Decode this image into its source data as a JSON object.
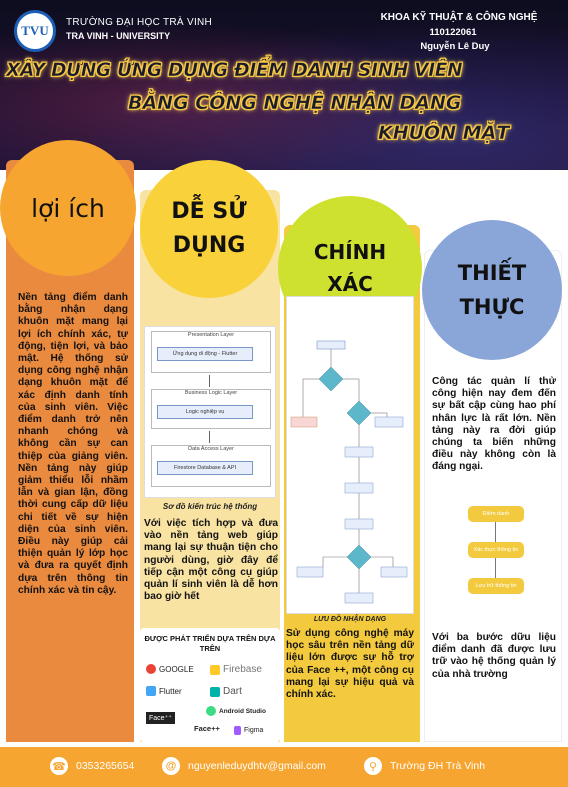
{
  "header": {
    "logo_text": "TVU",
    "university": "TRƯỜNG ĐẠI HỌC TRÀ VINH",
    "university_en": "TRA VINH - UNIVERSITY",
    "faculty": "KHOA KỸ THUẬT & CÔNG NGHỆ",
    "student_id": "110122061",
    "student_name": "Nguyễn Lê Duy",
    "title_line1": "XÂY DỰNG ỨNG DỤNG ĐIỂM DANH SINH VIÊN",
    "title_line2": "BẰNG CÔNG NGHỆ NHẬN DẠNG",
    "title_line3": "KHUÔN MẶT"
  },
  "columns": [
    {
      "heading": "lợi ích",
      "text": "Nền tảng điểm danh bằng nhận dạng khuôn mặt mang lại lợi ích chính xác, tự động, tiện lợi, và bảo mật. Hệ thống sử dụng công nghệ nhận dạng khuôn mặt để xác định danh tính của sinh viên. Việc điểm danh trở nên nhanh chóng và không cần sự can thiệp của giảng viên. Nền tảng này giúp giảm thiểu lỗi nhầm lẫn và gian lận, đồng thời cung cấp dữ liệu chi tiết về sự hiện diện của sinh viên. Điều này giúp cải thiện quản lý lớp học và đưa ra quyết định dựa trên thông tin chính xác và tin cậy."
    },
    {
      "heading_line1": "DỄ SỬ",
      "heading_line2": "DỤNG",
      "diagram": {
        "layer1": "Presentation Layer",
        "box1": "Ứng dụng di động - Flutter",
        "layer2": "Business Logic Layer",
        "box2": "Logic nghiệp vụ",
        "layer3": "Data Access Layer",
        "box3": "Firestore Database & API"
      },
      "caption": "Sơ đồ kiến trúc hệ thống",
      "text": "Với việc tích hợp và đưa vào nền tảng web giúp mang lại sự thuận tiện cho người dùng, giờ đây để tiếp cận một công cụ giúp quản lí sinh viên là dễ hơn bao giờ hết",
      "tech_title": "ĐƯỢC PHÁT TRIỂN DỰA TRÊN DỰA TRÊN",
      "tech": [
        "GOOGLE",
        "Firebase",
        "Flutter",
        "Dart",
        "Face⁺⁺",
        "Android Studio",
        "Face++",
        "Figma"
      ]
    },
    {
      "heading_line1": "CHÍNH",
      "heading_line2": "XÁC",
      "caption": "LƯU ĐỒ NHẬN DẠNG",
      "text": "Sử dụng công nghệ máy học sâu trên nền tảng dữ liệu lớn được sự hỗ trợ của Face ++, một công cụ mang lại sự hiệu quả và chính xác."
    },
    {
      "heading_line1": "THIẾT",
      "heading_line2": "THỰC",
      "text1": "Công tác quản lí thử công hiện nay đem đến sự bất cập cùng hao phí nhân lực là rất lớn. Nền tảng này ra đời giúp chúng ta biến những điều này không còn là đáng ngại.",
      "steps": [
        "Điểm danh",
        "Xác thực thông tin",
        "Lưu trữ thông tin"
      ],
      "text2": "Với ba bước dữu liệu điểm danh đã được lưu trữ vào hệ thống quản lý của nhà trường"
    }
  ],
  "footer": {
    "phone": "0353265654",
    "email": "nguyenleduydhtv@gmail.com",
    "location": "Trường ĐH Trà Vinh"
  },
  "colors": {
    "orange": "#f6a531",
    "yellow": "#f9d13a",
    "lime": "#cfe12f",
    "blue": "#8aa6d8"
  }
}
